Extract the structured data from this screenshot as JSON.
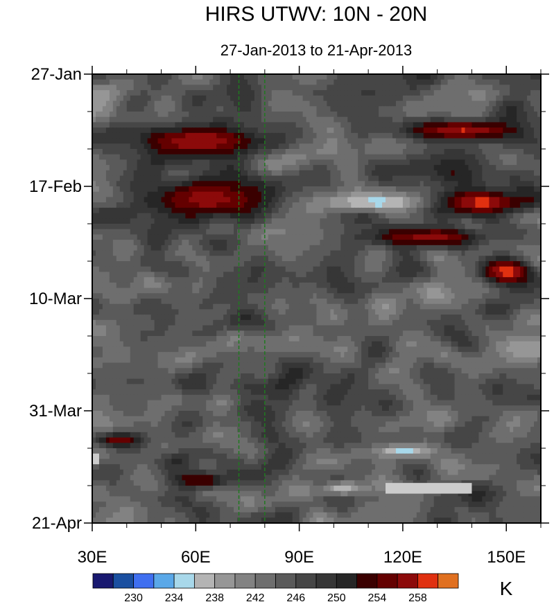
{
  "chart_data": {
    "type": "heatmap",
    "title": "HIRS UTWV: 10N - 20N",
    "subtitle": "27-Jan-2013 to 21-Apr-2013",
    "x_axis": {
      "ticks": [
        {
          "value": 30,
          "label": "30E"
        },
        {
          "value": 60,
          "label": "60E"
        },
        {
          "value": 90,
          "label": "90E"
        },
        {
          "value": 120,
          "label": "120E"
        },
        {
          "value": 150,
          "label": "150E"
        }
      ],
      "minor_step": 10,
      "range": [
        30,
        160
      ]
    },
    "y_axis": {
      "ticks": [
        {
          "value": 0,
          "label": "27-Jan"
        },
        {
          "value": 21,
          "label": "17-Feb"
        },
        {
          "value": 42,
          "label": "10-Mar"
        },
        {
          "value": 63,
          "label": "31-Mar"
        },
        {
          "value": 84,
          "label": "21-Apr"
        }
      ],
      "minor_step": 7,
      "range": [
        0,
        84
      ],
      "unit": "days since 27-Jan-2013"
    },
    "reference_lines": [
      {
        "lon": 72.5,
        "color": "#1f7a1f",
        "style": "dashed"
      },
      {
        "lon": 80,
        "color": "#1f7a1f",
        "style": "dashed"
      }
    ],
    "colorbar": {
      "unit": "K",
      "levels": [
        228,
        230,
        232,
        234,
        236,
        238,
        240,
        242,
        244,
        246,
        248,
        250,
        252,
        254,
        256,
        258,
        260
      ],
      "labels": [
        {
          "value": 230,
          "label": "230"
        },
        {
          "value": 234,
          "label": "234"
        },
        {
          "value": 238,
          "label": "238"
        },
        {
          "value": 242,
          "label": "242"
        },
        {
          "value": 246,
          "label": "246"
        },
        {
          "value": 250,
          "label": "250"
        },
        {
          "value": 254,
          "label": "254"
        },
        {
          "value": 258,
          "label": "258"
        }
      ],
      "colors": [
        "#191970",
        "#1a4fa0",
        "#3f6ff0",
        "#5aa8e8",
        "#a8d8ea",
        "#b4b4b4",
        "#969696",
        "#828282",
        "#6e6e6e",
        "#5a5a5a",
        "#464646",
        "#363636",
        "#262626",
        "#3a0000",
        "#640000",
        "#8c0a0a",
        "#e03010",
        "#e07020"
      ]
    },
    "features": [
      {
        "type": "warm",
        "lon": [
          38,
          85
        ],
        "day": [
          9,
          16
        ],
        "peak": 258
      },
      {
        "type": "warm",
        "lon": [
          40,
          88
        ],
        "day": [
          19,
          28
        ],
        "peak": 257
      },
      {
        "type": "warm",
        "lon": [
          115,
          160
        ],
        "day": [
          8,
          13
        ],
        "peak": 258
      },
      {
        "type": "warm",
        "lon": [
          125,
          160
        ],
        "day": [
          21,
          27
        ],
        "peak": 259
      },
      {
        "type": "warm",
        "lon": [
          105,
          150
        ],
        "day": [
          28,
          33
        ],
        "peak": 257
      },
      {
        "type": "warm",
        "lon": [
          140,
          160
        ],
        "day": [
          34,
          40
        ],
        "peak": 259
      },
      {
        "type": "warm",
        "lon": [
          30,
          45
        ],
        "day": [
          67,
          70
        ],
        "peak": 256
      },
      {
        "type": "warm",
        "lon": [
          50,
          72
        ],
        "day": [
          74,
          78
        ],
        "peak": 255
      },
      {
        "type": "cool",
        "lon": [
          95,
          130
        ],
        "day": [
          22,
          26
        ],
        "peak": 235
      },
      {
        "type": "cool",
        "lon": [
          110,
          130
        ],
        "day": [
          69,
          72
        ],
        "peak": 235
      },
      {
        "type": "cool",
        "lon": [
          95,
          110
        ],
        "day": [
          76,
          79
        ],
        "peak": 236
      }
    ],
    "missing_data": [
      {
        "lon": [
          30,
          32
        ],
        "day": [
          71,
          73
        ]
      },
      {
        "lon": [
          115,
          140
        ],
        "day": [
          76.5,
          78.5
        ]
      }
    ]
  }
}
